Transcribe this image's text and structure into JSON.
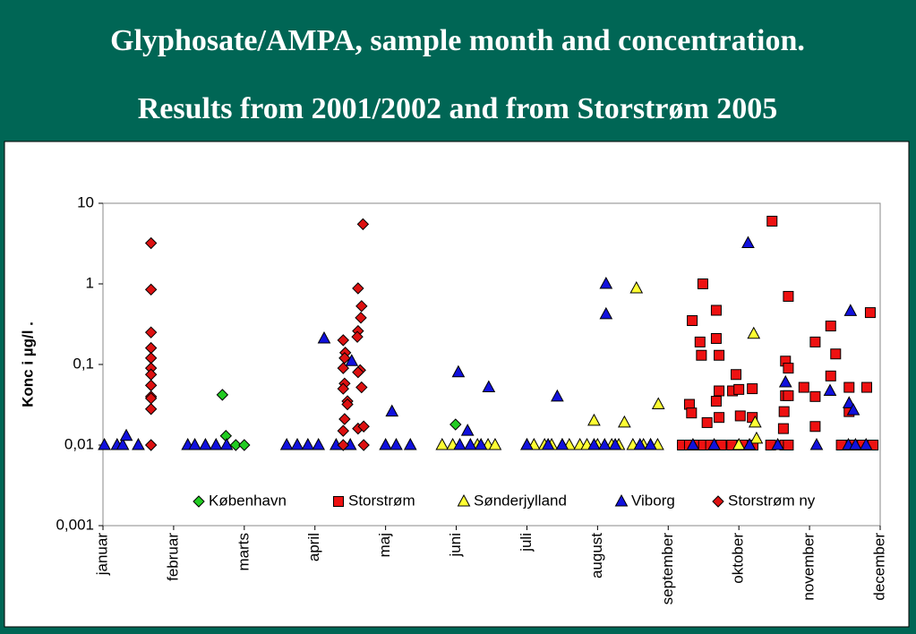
{
  "chart_data": {
    "type": "scatter",
    "title": "Glyphosate/AMPA, sample month and concentration.",
    "subtitle": "Results from 2001/2002 and from Storstrøm 2005",
    "ylabel": "Konc i µg/l  .",
    "log_y": true,
    "grid": false,
    "legend": "bottom",
    "xlim": [
      0,
      11
    ],
    "xticks": [
      {
        "value": 0,
        "label": "januar"
      },
      {
        "value": 1,
        "label": "februar"
      },
      {
        "value": 2,
        "label": "marts"
      },
      {
        "value": 3,
        "label": "april"
      },
      {
        "value": 4,
        "label": "maj"
      },
      {
        "value": 5,
        "label": "juni"
      },
      {
        "value": 6,
        "label": "juli"
      },
      {
        "value": 7,
        "label": "august"
      },
      {
        "value": 8,
        "label": "september"
      },
      {
        "value": 9,
        "label": "oktober"
      },
      {
        "value": 10,
        "label": "november"
      },
      {
        "value": 11,
        "label": "december"
      }
    ],
    "ylim": [
      0.001,
      10
    ],
    "yticks": [
      {
        "value": 0.001,
        "label": "0,001"
      },
      {
        "value": 0.01,
        "label": "0,01"
      },
      {
        "value": 0.1,
        "label": "0,1"
      },
      1,
      10
    ],
    "series": [
      {
        "name": "København",
        "color": "#22cc22",
        "marker": "diamond",
        "x": [
          1.69,
          1.74,
          1.88,
          2.0,
          4.99
        ],
        "values": [
          0.042,
          0.013,
          0.01,
          0.01,
          0.018
        ]
      },
      {
        "name": "Storstrøm",
        "color": "#ee1111",
        "marker": "square",
        "x": [
          8.34,
          8.49,
          8.68,
          8.45,
          8.47,
          8.68,
          8.72,
          8.3,
          8.33,
          8.55,
          8.68,
          8.72,
          8.91,
          8.96,
          9.0,
          8.72,
          9.02,
          9.19,
          9.19,
          9.47,
          9.7,
          9.66,
          9.7,
          9.66,
          9.7,
          9.64,
          9.63,
          9.92,
          10.08,
          10.08,
          10.3,
          10.37,
          10.3,
          10.08,
          10.56,
          10.81,
          10.86,
          10.56,
          8.2,
          8.3,
          8.4,
          8.5,
          8.6,
          8.75,
          8.9,
          9.05,
          9.2,
          9.45,
          9.65,
          9.7,
          10.45,
          10.6,
          10.75,
          10.9
        ],
        "values": [
          0.35,
          1.0,
          0.47,
          0.19,
          0.13,
          0.21,
          0.13,
          0.032,
          0.025,
          0.019,
          0.035,
          0.047,
          0.047,
          0.075,
          0.049,
          0.022,
          0.023,
          0.05,
          0.022,
          6.0,
          0.7,
          0.11,
          0.09,
          0.041,
          0.041,
          0.026,
          0.016,
          0.052,
          0.19,
          0.04,
          0.3,
          0.135,
          0.072,
          0.017,
          0.052,
          0.052,
          0.44,
          0.026,
          0.01,
          0.01,
          0.01,
          0.01,
          0.01,
          0.01,
          0.01,
          0.01,
          0.01,
          0.01,
          0.01,
          0.01,
          0.01,
          0.01,
          0.01,
          0.01
        ]
      },
      {
        "name": "Sønderjylland",
        "color": "#ffff33",
        "marker": "triangle",
        "x": [
          4.8,
          4.95,
          5.3,
          5.45,
          5.55,
          6.0,
          6.1,
          6.25,
          6.35,
          6.5,
          6.6,
          6.75,
          6.85,
          7.0,
          7.2,
          7.3,
          7.5,
          7.65,
          7.75,
          7.85,
          9.0,
          6.95,
          7.38,
          7.55,
          7.86,
          9.21,
          9.23,
          9.25
        ],
        "values": [
          0.01,
          0.01,
          0.01,
          0.01,
          0.01,
          0.01,
          0.01,
          0.01,
          0.01,
          0.01,
          0.01,
          0.01,
          0.01,
          0.01,
          0.01,
          0.01,
          0.01,
          0.01,
          0.01,
          0.01,
          0.01,
          0.02,
          0.019,
          0.88,
          0.032,
          0.24,
          0.019,
          0.012
        ]
      },
      {
        "name": "Viborg",
        "color": "#1111dd",
        "marker": "triangle",
        "x": [
          0.02,
          0.2,
          0.28,
          0.5,
          1.2,
          1.3,
          1.45,
          1.6,
          1.75,
          2.6,
          2.75,
          2.9,
          3.05,
          3.3,
          3.5,
          4.0,
          4.15,
          4.35,
          5.05,
          5.2,
          5.35,
          6.0,
          6.3,
          6.5,
          6.95,
          7.1,
          7.25,
          7.6,
          7.75,
          8.35,
          8.65,
          9.15,
          9.55,
          10.1,
          10.55,
          10.65,
          10.8,
          0.33,
          3.13,
          3.52,
          4.09,
          5.03,
          5.16,
          5.46,
          6.43,
          7.12,
          7.12,
          9.13,
          9.66,
          10.29,
          10.58,
          10.56,
          10.62
        ],
        "values": [
          0.01,
          0.01,
          0.01,
          0.01,
          0.01,
          0.01,
          0.01,
          0.01,
          0.01,
          0.01,
          0.01,
          0.01,
          0.01,
          0.01,
          0.01,
          0.01,
          0.01,
          0.01,
          0.01,
          0.01,
          0.01,
          0.01,
          0.01,
          0.01,
          0.01,
          0.01,
          0.01,
          0.01,
          0.01,
          0.01,
          0.01,
          0.01,
          0.01,
          0.01,
          0.01,
          0.01,
          0.01,
          0.013,
          0.21,
          0.11,
          0.026,
          0.08,
          0.015,
          0.052,
          0.04,
          1.0,
          0.42,
          3.2,
          0.06,
          0.047,
          0.46,
          0.033,
          0.027
        ]
      },
      {
        "name": "Storstrøm ny",
        "color": "#dd1111",
        "marker": "diamond",
        "x": [
          0.68,
          0.68,
          0.68,
          0.68,
          0.68,
          0.68,
          0.68,
          0.68,
          0.68,
          0.68,
          0.68,
          0.68,
          3.4,
          3.43,
          3.42,
          3.4,
          3.42,
          3.4,
          3.46,
          3.42,
          3.4,
          3.4,
          3.68,
          3.61,
          3.66,
          3.65,
          3.61,
          3.6,
          3.64,
          3.61,
          3.66,
          3.61,
          3.69,
          3.69,
          3.46
        ],
        "values": [
          3.2,
          0.85,
          0.25,
          0.16,
          0.12,
          0.09,
          0.075,
          0.055,
          0.04,
          0.038,
          0.028,
          0.01,
          0.2,
          0.14,
          0.12,
          0.09,
          0.058,
          0.05,
          0.035,
          0.021,
          0.015,
          0.01,
          5.5,
          0.88,
          0.53,
          0.38,
          0.26,
          0.22,
          0.085,
          0.08,
          0.052,
          0.016,
          0.017,
          0.01,
          0.032
        ]
      }
    ]
  }
}
